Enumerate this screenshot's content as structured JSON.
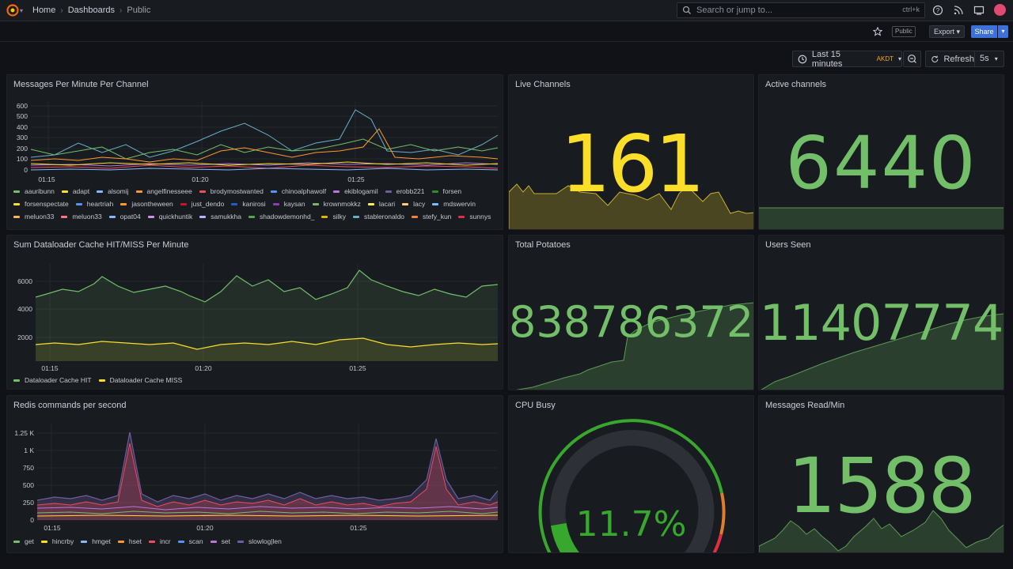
{
  "topbar": {
    "breadcrumbs": [
      "Home",
      "Dashboards",
      "Public"
    ],
    "search_placeholder": "Search or jump to...",
    "search_shortcut": "ctrl+k"
  },
  "toolbar": {
    "public_tag": "Public",
    "export_label": "Export",
    "share_label": "Share",
    "time_range": "Last 15 minutes",
    "timezone": "AKDT",
    "refresh_label": "Refresh",
    "refresh_interval": "5s"
  },
  "panels": {
    "messages_per_minute": {
      "title": "Messages Per Minute Per Channel",
      "y_ticks": [
        "600",
        "500",
        "400",
        "300",
        "200",
        "100",
        "0"
      ],
      "x_ticks": [
        "01:15",
        "01:20",
        "01:25"
      ],
      "legend": [
        {
          "name": "aauribunn",
          "color": "#73bf69"
        },
        {
          "name": "adapt",
          "color": "#fade2a"
        },
        {
          "name": "alsomij",
          "color": "#8ab8ff"
        },
        {
          "name": "angelfinesseee",
          "color": "#ff9830"
        },
        {
          "name": "brodymostwanted",
          "color": "#f2495c"
        },
        {
          "name": "chinoalphawolf",
          "color": "#5794f2"
        },
        {
          "name": "ekiblogamil",
          "color": "#b877d9"
        },
        {
          "name": "erobb221",
          "color": "#705da0"
        },
        {
          "name": "forsen",
          "color": "#37872d"
        },
        {
          "name": "forsenspectate",
          "color": "#fade2a"
        },
        {
          "name": "heartriah",
          "color": "#5794f2"
        },
        {
          "name": "jasontheween",
          "color": "#ff9830"
        },
        {
          "name": "just_dendo",
          "color": "#c4162a"
        },
        {
          "name": "kanirosi",
          "color": "#1f60c4"
        },
        {
          "name": "kaysan",
          "color": "#8f3bb8"
        },
        {
          "name": "krownmokkz",
          "color": "#7eb26d"
        },
        {
          "name": "lacari",
          "color": "#ffee52"
        },
        {
          "name": "lacy",
          "color": "#ffcb7d"
        },
        {
          "name": "mdswervin",
          "color": "#73bfff"
        },
        {
          "name": "meluon33",
          "color": "#ffb357"
        },
        {
          "name": "meluon33",
          "color": "#ff7383"
        },
        {
          "name": "opat04",
          "color": "#8ab8ff"
        },
        {
          "name": "quickhuntik",
          "color": "#ca95e5"
        },
        {
          "name": "samukkha",
          "color": "#b4b4ff"
        },
        {
          "name": "shadowdemonhd_",
          "color": "#56a64b"
        },
        {
          "name": "silky",
          "color": "#e0b400"
        },
        {
          "name": "stableronaldo",
          "color": "#64b0c8"
        },
        {
          "name": "stefy_kun",
          "color": "#ef843c"
        },
        {
          "name": "sunnys",
          "color": "#e02f44"
        }
      ]
    },
    "dataloader": {
      "title": "Sum Dataloader Cache HIT/MISS Per Minute",
      "y_ticks": [
        "6000",
        "4000",
        "2000"
      ],
      "x_ticks": [
        "01:15",
        "01:20",
        "01:25"
      ],
      "legend": [
        {
          "name": "Dataloader Cache HIT",
          "color": "#73bf69"
        },
        {
          "name": "Dataloader Cache MISS",
          "color": "#fade2a"
        }
      ]
    },
    "redis": {
      "title": "Redis commands per second",
      "y_ticks": [
        "1.25 K",
        "1 K",
        "750",
        "500",
        "250",
        "0"
      ],
      "x_ticks": [
        "01:15",
        "01:20",
        "01:25"
      ],
      "legend": [
        {
          "name": "get",
          "color": "#73bf69"
        },
        {
          "name": "hincrby",
          "color": "#fade2a"
        },
        {
          "name": "hmget",
          "color": "#8ab8ff"
        },
        {
          "name": "hset",
          "color": "#ff9830"
        },
        {
          "name": "incr",
          "color": "#f2495c"
        },
        {
          "name": "scan",
          "color": "#5794f2"
        },
        {
          "name": "set",
          "color": "#b877d9"
        },
        {
          "name": "slowlog|len",
          "color": "#705da0"
        }
      ]
    },
    "live_channels": {
      "title": "Live Channels",
      "value": "161",
      "color": "#fade2a"
    },
    "active_channels": {
      "title": "Active channels",
      "value": "6440",
      "color": "#73bf69"
    },
    "total_potatoes": {
      "title": "Total Potatoes",
      "value": "838786372",
      "color": "#73bf69"
    },
    "users_seen": {
      "title": "Users Seen",
      "value": "11407774",
      "color": "#73bf69"
    },
    "cpu_busy": {
      "title": "CPU Busy",
      "value": "11.7%",
      "percent": 11.7,
      "color": "#37872d"
    },
    "messages_read": {
      "title": "Messages Read/Min",
      "value": "1588",
      "color": "#73bf69"
    }
  }
}
